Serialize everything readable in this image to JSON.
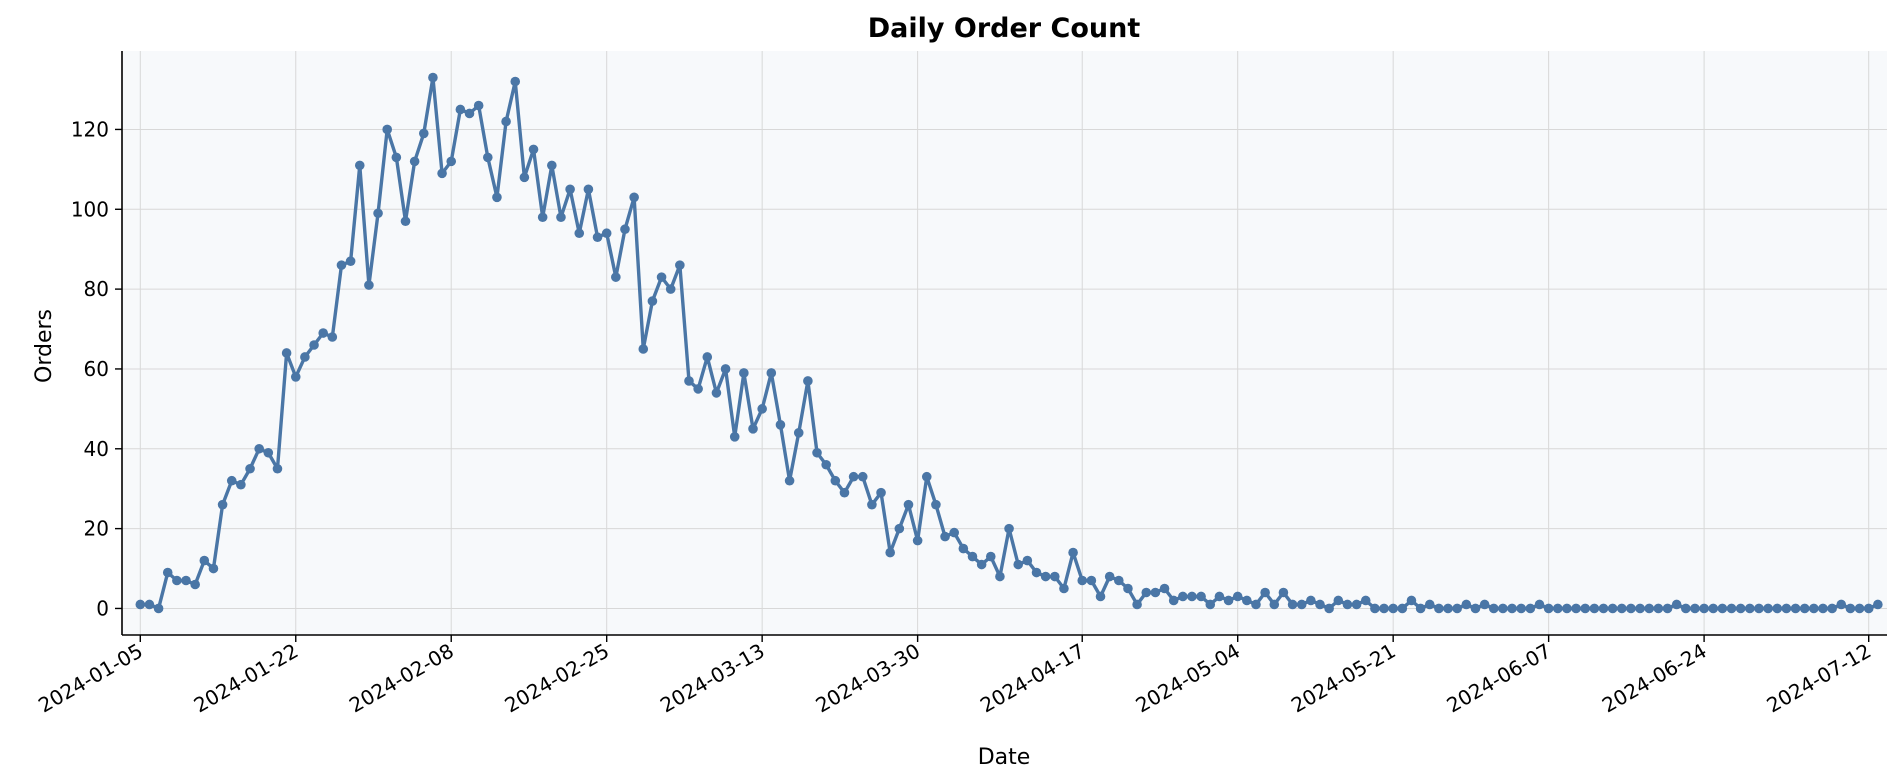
{
  "chart_data": {
    "type": "line",
    "title": "Daily Order Count",
    "xlabel": "Date",
    "ylabel": "Orders",
    "x_start": "2024-01-05",
    "x_end": "2024-07-12",
    "xlim": [
      "2024-01-03",
      "2024-07-14"
    ],
    "ylim": [
      -6.65,
      139.65
    ],
    "x_ticks": [
      "2024-01-05",
      "2024-01-22",
      "2024-02-08",
      "2024-02-25",
      "2024-03-13",
      "2024-03-30",
      "2024-04-17",
      "2024-05-04",
      "2024-05-21",
      "2024-06-07",
      "2024-06-24",
      "2024-07-12"
    ],
    "y_ticks": [
      0,
      20,
      40,
      60,
      80,
      100,
      120
    ],
    "grid": true,
    "colors": {
      "line": "#4a76a6",
      "plot_background": "#f7f9fb",
      "grid": "#d8d8d8"
    },
    "series": [
      {
        "values": [
          1,
          1,
          0,
          9,
          7,
          7,
          6,
          12,
          10,
          26,
          32,
          31,
          35,
          40,
          39,
          35,
          64,
          58,
          63,
          66,
          69,
          68,
          86,
          87,
          111,
          81,
          99,
          120,
          113,
          97,
          112,
          119,
          133,
          109,
          112,
          125,
          124,
          126,
          113,
          103,
          122,
          132,
          108,
          115,
          98,
          111,
          98,
          105,
          94,
          105,
          93,
          94,
          83,
          95,
          103,
          65,
          77,
          83,
          80,
          86,
          57,
          55,
          63,
          54,
          60,
          43,
          59,
          45,
          50,
          59,
          46,
          32,
          44,
          57,
          39,
          36,
          32,
          29,
          33,
          33,
          26,
          29,
          14,
          20,
          26,
          17,
          33,
          26,
          18,
          19,
          15,
          13,
          11,
          13,
          8,
          20,
          11,
          12,
          9,
          8,
          8,
          5,
          14,
          7,
          7,
          3,
          8,
          7,
          5,
          1,
          4,
          4,
          5,
          2,
          3,
          3,
          3,
          1,
          3,
          2,
          3,
          2,
          1,
          4,
          1,
          4,
          1,
          1,
          2,
          1,
          0,
          2,
          1,
          1,
          2,
          0,
          0,
          0,
          0,
          2,
          0,
          1,
          0,
          0,
          0,
          1,
          0,
          1,
          0,
          0,
          0,
          0,
          0,
          1,
          0,
          0,
          0,
          0,
          0,
          0,
          0,
          0,
          0,
          0,
          0,
          0,
          0,
          0,
          1,
          0,
          0,
          0,
          0,
          0,
          0,
          0,
          0,
          0,
          0,
          0,
          0,
          0,
          0,
          0,
          0,
          0,
          1,
          0,
          0,
          0,
          1
        ]
      }
    ]
  }
}
